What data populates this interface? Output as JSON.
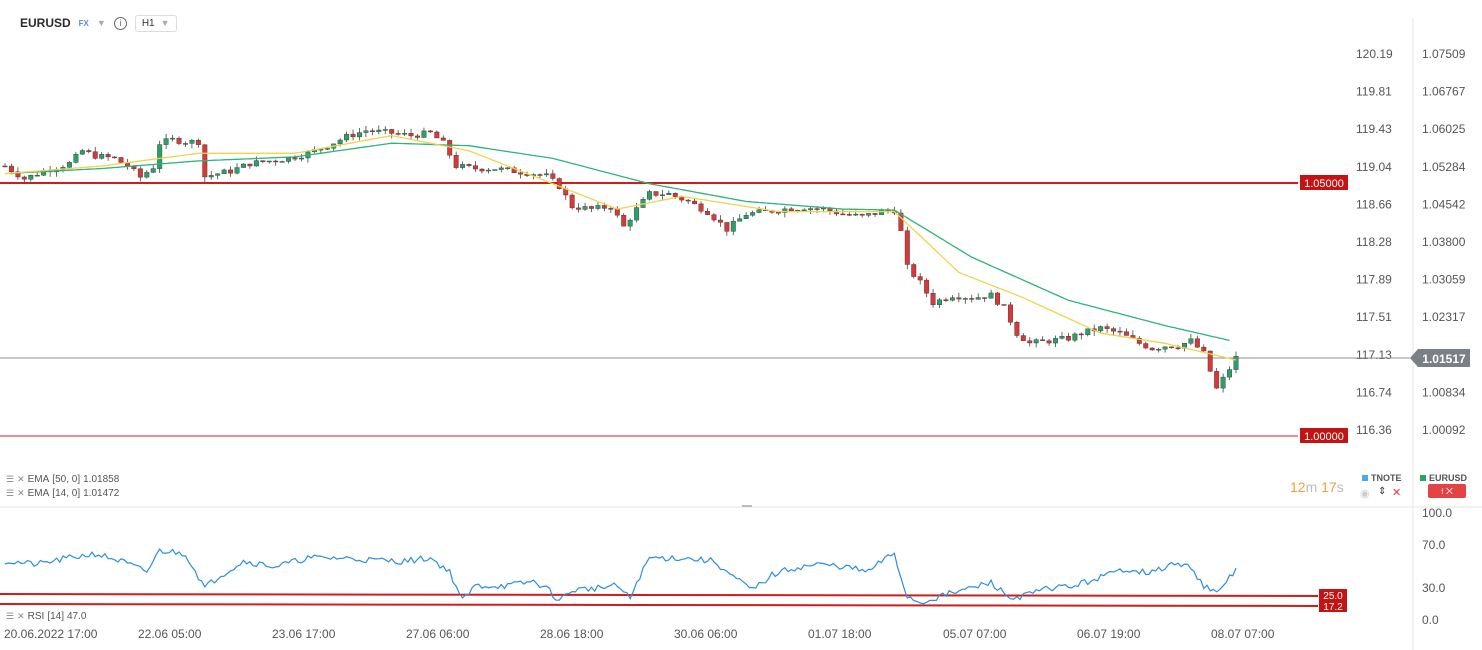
{
  "header": {
    "symbol": "EURUSD",
    "market": "FX",
    "timeframe": "H1",
    "caret": "▼",
    "info": "i"
  },
  "left_axis_labels": [
    "120.19",
    "119.81",
    "119.43",
    "119.04",
    "118.66",
    "118.28",
    "117.89",
    "117.51",
    "117.13",
    "116.74",
    "116.36"
  ],
  "right_axis_labels": [
    "1.07509",
    "1.06767",
    "1.06025",
    "1.05284",
    "1.04542",
    "1.03800",
    "1.03059",
    "1.02317",
    "1.01517",
    "1.00834",
    "1.00092"
  ],
  "price_tags": {
    "upper_level": "1.05000",
    "lower_level": "1.00000",
    "current": "1.01517"
  },
  "indicators": [
    {
      "label": "EMA",
      "params": "[50, 0]",
      "value": "1.01858"
    },
    {
      "label": "EMA",
      "params": "[14, 0]",
      "value": "1.01472"
    }
  ],
  "rsi": {
    "label": "RSI",
    "params": "[14]",
    "value": "47.0",
    "axis_labels": [
      "100.0",
      "70.0",
      "30.0",
      "0.0"
    ],
    "upper_tag": "25.0",
    "lower_tag": "17.2"
  },
  "timer": {
    "minutes": "12",
    "m": "m",
    "seconds": "17",
    "s": "s"
  },
  "symbols": {
    "tnote": "TNOTE",
    "eurusd": "EURUSD"
  },
  "x_labels": [
    "20.06.2022  17:00",
    "22.06  05:00",
    "23.06  17:00",
    "27.06  06:00",
    "28.06  18:00",
    "30.06  06:00",
    "01.07  18:00",
    "05.07  07:00",
    "06.07  19:00",
    "08.07  07:00"
  ],
  "colors": {
    "level_line": "#d11c1c",
    "ema50": "#2cb47c",
    "ema14": "#f0d44a",
    "rsi_line": "#2a8ee0",
    "bull": "#2aa16a",
    "bear": "#d73838",
    "tnote": "#42b0f0",
    "current_tag": "#7b7f86"
  },
  "chart_data": {
    "type": "candlestick",
    "symbol": "EURUSD",
    "timeframe": "H1",
    "x_ticks": [
      "20.06.2022 17:00",
      "22.06 05:00",
      "23.06 17:00",
      "27.06 06:00",
      "28.06 18:00",
      "30.06 06:00",
      "01.07 18:00",
      "05.07 07:00",
      "06.07 19:00",
      "08.07 07:00"
    ],
    "ylim": [
      1.0009,
      1.0751
    ],
    "close_path": [
      [
        0,
        1.053
      ],
      [
        3,
        1.0505
      ],
      [
        6,
        1.052
      ],
      [
        10,
        1.0535
      ],
      [
        12,
        1.056
      ],
      [
        14,
        1.055
      ],
      [
        17,
        1.0545
      ],
      [
        19,
        1.053
      ],
      [
        21,
        1.0508
      ],
      [
        23,
        1.0528
      ],
      [
        24,
        1.0575
      ],
      [
        26,
        1.0582
      ],
      [
        28,
        1.0578
      ],
      [
        30,
        1.0578
      ],
      [
        31,
        1.0509
      ],
      [
        33,
        1.0515
      ],
      [
        35,
        1.052
      ],
      [
        38,
        1.0535
      ],
      [
        41,
        1.054
      ],
      [
        44,
        1.0545
      ],
      [
        47,
        1.0555
      ],
      [
        50,
        1.057
      ],
      [
        53,
        1.0588
      ],
      [
        56,
        1.06
      ],
      [
        60,
        1.0595
      ],
      [
        63,
        1.059
      ],
      [
        66,
        1.0595
      ],
      [
        68,
        1.0575
      ],
      [
        70,
        1.053
      ],
      [
        73,
        1.0525
      ],
      [
        76,
        1.0525
      ],
      [
        79,
        1.052
      ],
      [
        82,
        1.0515
      ],
      [
        84,
        1.051
      ],
      [
        86,
        1.049
      ],
      [
        88,
        1.045
      ],
      [
        91,
        1.0445
      ],
      [
        94,
        1.045
      ],
      [
        96,
        1.041
      ],
      [
        98,
        1.0445
      ],
      [
        100,
        1.0475
      ],
      [
        103,
        1.0475
      ],
      [
        106,
        1.046
      ],
      [
        109,
        1.044
      ],
      [
        112,
        1.0405
      ],
      [
        115,
        1.0435
      ],
      [
        118,
        1.044
      ],
      [
        121,
        1.0445
      ],
      [
        124,
        1.0448
      ],
      [
        127,
        1.0445
      ],
      [
        130,
        1.0435
      ],
      [
        133,
        1.043
      ],
      [
        136,
        1.044
      ],
      [
        138,
        1.0443
      ],
      [
        139,
        1.04
      ],
      [
        140,
        1.033
      ],
      [
        142,
        1.03
      ],
      [
        144,
        1.026
      ],
      [
        147,
        1.0275
      ],
      [
        150,
        1.027
      ],
      [
        153,
        1.0275
      ],
      [
        155,
        1.025
      ],
      [
        157,
        1.02
      ],
      [
        159,
        1.018
      ],
      [
        162,
        1.0185
      ],
      [
        165,
        1.019
      ],
      [
        167,
        1.02
      ],
      [
        170,
        1.021
      ],
      [
        173,
        1.02
      ],
      [
        176,
        1.018
      ],
      [
        178,
        1.017
      ],
      [
        180,
        1.0175
      ],
      [
        182,
        1.0175
      ],
      [
        184,
        1.0185
      ],
      [
        186,
        1.016
      ],
      [
        188,
        1.009
      ],
      [
        190,
        1.013
      ],
      [
        191,
        1.01517
      ]
    ],
    "series": [
      {
        "name": "EMA [50, 0]",
        "last": 1.01858,
        "points": [
          [
            0,
            1.0515
          ],
          [
            15,
            1.0525
          ],
          [
            30,
            1.054
          ],
          [
            45,
            1.0548
          ],
          [
            60,
            1.0575
          ],
          [
            72,
            1.057
          ],
          [
            85,
            1.0545
          ],
          [
            100,
            1.0495
          ],
          [
            115,
            1.046
          ],
          [
            130,
            1.0445
          ],
          [
            138,
            1.0443
          ],
          [
            150,
            1.035
          ],
          [
            165,
            1.0265
          ],
          [
            180,
            1.0215
          ],
          [
            190,
            1.01858
          ]
        ]
      },
      {
        "name": "EMA [14, 0]",
        "last": 1.01472,
        "points": [
          [
            0,
            1.0515
          ],
          [
            15,
            1.053
          ],
          [
            30,
            1.0555
          ],
          [
            45,
            1.0555
          ],
          [
            60,
            1.059
          ],
          [
            72,
            1.056
          ],
          [
            85,
            1.0495
          ],
          [
            95,
            1.0445
          ],
          [
            105,
            1.047
          ],
          [
            120,
            1.044
          ],
          [
            138,
            1.044
          ],
          [
            148,
            1.032
          ],
          [
            158,
            1.027
          ],
          [
            170,
            1.02
          ],
          [
            180,
            1.018
          ],
          [
            191,
            1.01472
          ]
        ]
      }
    ],
    "levels": [
      1.05,
      1.0
    ],
    "current": 1.01517
  },
  "rsi_data": {
    "ylim": [
      0,
      100
    ],
    "levels": [
      25.0,
      17.2
    ],
    "points": [
      [
        0,
        55
      ],
      [
        5,
        52
      ],
      [
        10,
        58
      ],
      [
        14,
        62
      ],
      [
        18,
        55
      ],
      [
        22,
        45
      ],
      [
        24,
        65
      ],
      [
        28,
        62
      ],
      [
        31,
        30
      ],
      [
        33,
        40
      ],
      [
        37,
        55
      ],
      [
        42,
        50
      ],
      [
        47,
        58
      ],
      [
        52,
        58
      ],
      [
        57,
        56
      ],
      [
        62,
        55
      ],
      [
        66,
        58
      ],
      [
        69,
        45
      ],
      [
        71,
        18
      ],
      [
        73,
        32
      ],
      [
        78,
        32
      ],
      [
        82,
        36
      ],
      [
        84,
        30
      ],
      [
        86,
        18
      ],
      [
        88,
        28
      ],
      [
        92,
        30
      ],
      [
        95,
        32
      ],
      [
        97,
        20
      ],
      [
        98,
        35
      ],
      [
        100,
        58
      ],
      [
        105,
        58
      ],
      [
        110,
        55
      ],
      [
        113,
        40
      ],
      [
        116,
        28
      ],
      [
        119,
        42
      ],
      [
        122,
        48
      ],
      [
        126,
        52
      ],
      [
        130,
        50
      ],
      [
        134,
        45
      ],
      [
        136,
        55
      ],
      [
        138,
        62
      ],
      [
        139,
        40
      ],
      [
        140,
        22
      ],
      [
        142,
        16
      ],
      [
        145,
        22
      ],
      [
        150,
        30
      ],
      [
        153,
        35
      ],
      [
        156,
        20
      ],
      [
        159,
        24
      ],
      [
        162,
        30
      ],
      [
        166,
        32
      ],
      [
        170,
        40
      ],
      [
        174,
        48
      ],
      [
        178,
        44
      ],
      [
        181,
        52
      ],
      [
        184,
        50
      ],
      [
        186,
        32
      ],
      [
        188,
        24
      ],
      [
        190,
        40
      ],
      [
        191,
        47
      ]
    ]
  }
}
